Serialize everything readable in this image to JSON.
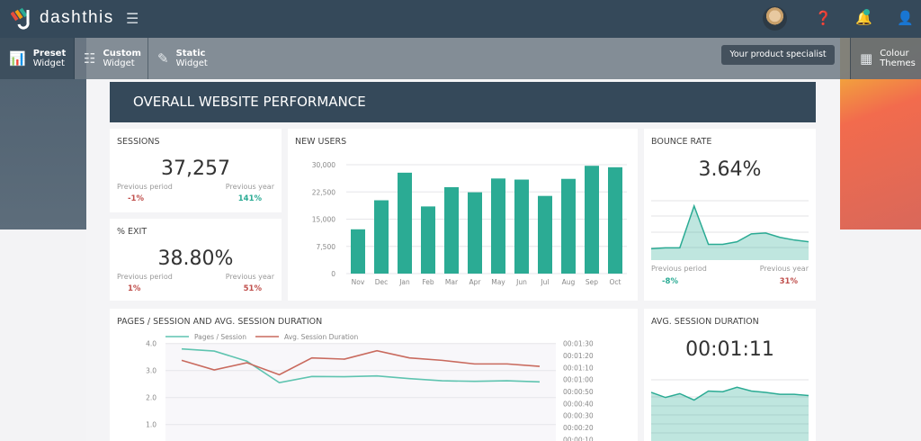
{
  "app": {
    "name": "dashthis",
    "menu_icon": "hamburger-icon"
  },
  "topbar": {
    "help_icon": "question-icon",
    "notification_icon": "bell-icon",
    "user_icon": "user-icon",
    "tooltip": "Your product specialist"
  },
  "toolbar": {
    "preset": {
      "title": "Preset",
      "subtitle": "Widget",
      "icon": "bar-chart-icon"
    },
    "custom": {
      "title": "Custom",
      "subtitle": "Widget",
      "icon": "sliders-icon"
    },
    "static": {
      "title": "Static",
      "subtitle": "Widget",
      "icon": "edit-icon"
    },
    "themes": {
      "title": "Colour",
      "subtitle": "Themes",
      "icon": "palette-icon"
    }
  },
  "colors": {
    "accent": "#2bab94",
    "negative": "#c0504d",
    "header": "#35495a"
  },
  "dashboard": {
    "title": "OVERALL WEBSITE PERFORMANCE"
  },
  "sessions": {
    "title": "SESSIONS",
    "value": "37,257",
    "prev_period_label": "Previous period",
    "prev_period": "-1%",
    "prev_year_label": "Previous year",
    "prev_year": "141%"
  },
  "exit": {
    "title": "% EXIT",
    "value": "38.80%",
    "prev_period_label": "Previous period",
    "prev_period": "1%",
    "prev_year_label": "Previous year",
    "prev_year": "51%"
  },
  "bounce": {
    "title": "BOUNCE RATE",
    "value": "3.64%",
    "prev_period_label": "Previous period",
    "prev_period": "-8%",
    "prev_year_label": "Previous year",
    "prev_year": "31%",
    "sparkline": [
      13,
      14,
      14,
      62,
      18,
      18,
      21,
      30,
      31,
      26,
      23,
      21
    ]
  },
  "avg_duration": {
    "title": "AVG. SESSION DURATION",
    "value": "00:01:11",
    "sparkline": [
      76,
      68,
      74,
      64,
      78,
      77,
      84,
      78,
      76,
      73,
      73,
      71
    ]
  },
  "chart_data": [
    {
      "type": "bar",
      "title": "NEW USERS",
      "categories": [
        "Nov",
        "Dec",
        "Jan",
        "Feb",
        "Mar",
        "Apr",
        "May",
        "Jun",
        "Jul",
        "Aug",
        "Sep",
        "Oct"
      ],
      "values": [
        12200,
        20200,
        27800,
        18500,
        23800,
        22400,
        26200,
        25900,
        21400,
        26100,
        29700,
        29300
      ],
      "yticks": [
        "30,000",
        "22,500",
        "15,000",
        "7,500",
        "0"
      ],
      "ylim": [
        0,
        30000
      ],
      "grid": true,
      "color": "#2bab94"
    },
    {
      "type": "line",
      "title": "PAGES / SESSION AND AVG. SESSION DURATION",
      "legend_position": "top-left",
      "series": [
        {
          "name": "Pages / Session",
          "axis": "left",
          "color": "#5fc4b0",
          "values": [
            3.8,
            3.72,
            3.35,
            2.55,
            2.78,
            2.77,
            2.8,
            2.7,
            2.62,
            2.6,
            2.62,
            2.58
          ]
        },
        {
          "name": "Avg. Session Duration",
          "axis": "right",
          "unit": "seconds",
          "color": "#c96a5e",
          "values": [
            76,
            68,
            74,
            64,
            78,
            77,
            84,
            78,
            76,
            73,
            73,
            71
          ]
        }
      ],
      "left_ticks": [
        "4.0",
        "3.0",
        "2.0",
        "1.0"
      ],
      "right_ticks": [
        "00:01:30",
        "00:01:20",
        "00:01:10",
        "00:01:00",
        "00:00:50",
        "00:00:40",
        "00:00:30",
        "00:00:20",
        "00:00:10"
      ],
      "left_ylim": [
        0,
        4
      ],
      "right_ylim": [
        0,
        90
      ],
      "grid": true
    }
  ]
}
